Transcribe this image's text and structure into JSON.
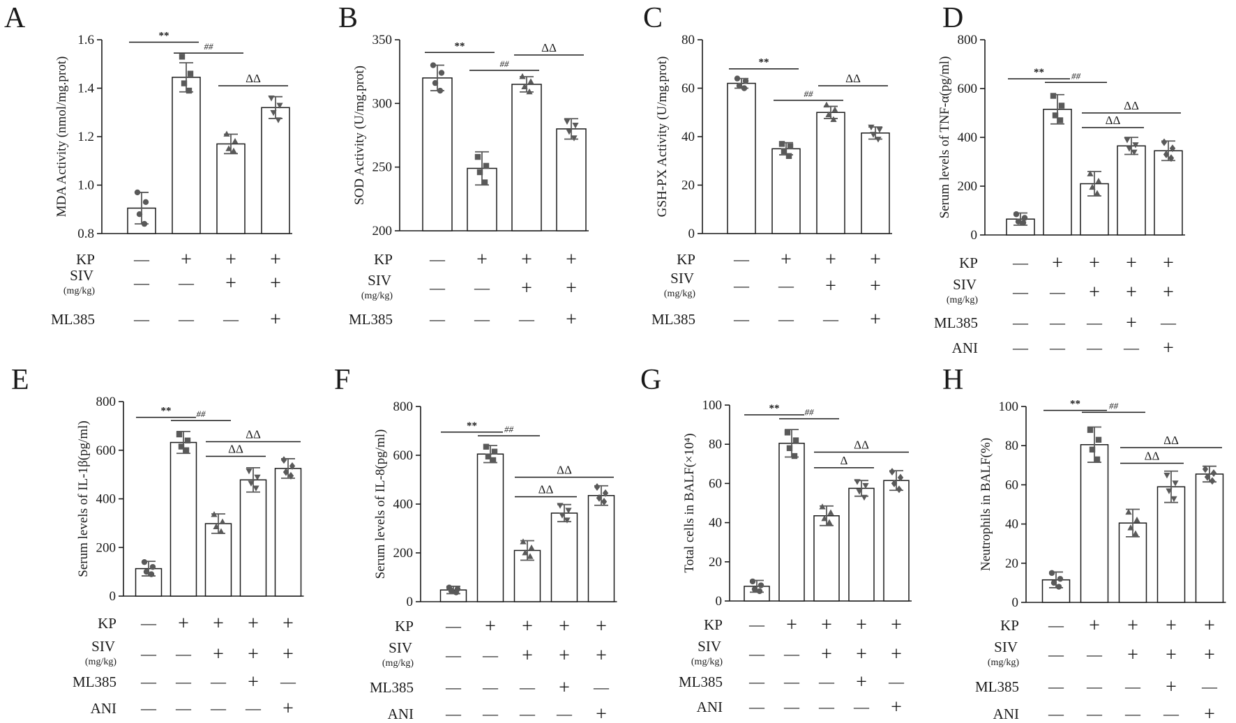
{
  "chart_data": [
    {
      "panel": "A",
      "type": "bar",
      "ylabel": "MDA Activity  (nmol/mg.prot)",
      "ylim": [
        0.8,
        1.6
      ],
      "yticks": [
        0.8,
        1.0,
        1.2,
        1.4,
        1.6
      ],
      "ytick_labels": [
        "0.8",
        "1.0",
        "1.2",
        "1.4",
        "1.6"
      ],
      "values": [
        0.905,
        1.445,
        1.17,
        1.32
      ],
      "errors": [
        0.065,
        0.06,
        0.04,
        0.045
      ],
      "points": [
        [
          0.97,
          0.93,
          0.88,
          0.84
        ],
        [
          1.53,
          1.46,
          1.42,
          1.39
        ],
        [
          1.21,
          1.18,
          1.15,
          1.14
        ],
        [
          1.36,
          1.33,
          1.3,
          1.27
        ]
      ],
      "markers": [
        "circle",
        "square",
        "triangle-up",
        "triangle-down"
      ],
      "sig": [
        {
          "label": "**",
          "from": 0,
          "to": 1,
          "y": 1.59
        },
        {
          "label": "##",
          "from": 1,
          "to": 2,
          "y": 1.545
        },
        {
          "label": "ΔΔ",
          "from": 2,
          "to": 3,
          "y": 1.41
        }
      ],
      "factors": [
        {
          "name": "KP",
          "sub": "",
          "values": [
            "—",
            "+",
            "+",
            "+"
          ]
        },
        {
          "name": "SIV",
          "sub": "(mg/kg)",
          "values": [
            "—",
            "—",
            "+",
            "+"
          ]
        },
        {
          "name": "ML385",
          "sub": "",
          "values": [
            "—",
            "—",
            "—",
            "+"
          ]
        }
      ]
    },
    {
      "panel": "B",
      "type": "bar",
      "ylabel": "SOD Activity (U/mg.prot)",
      "ylim": [
        200,
        350
      ],
      "yticks": [
        200,
        250,
        300,
        350
      ],
      "ytick_labels": [
        "200",
        "250",
        "300",
        "350"
      ],
      "values": [
        320,
        249,
        315,
        280
      ],
      "errors": [
        10,
        13,
        6,
        8
      ],
      "points": [
        [
          330,
          324,
          316,
          310
        ],
        [
          258,
          251,
          246,
          238
        ],
        [
          321,
          317,
          313,
          309
        ],
        [
          286,
          283,
          278,
          273
        ]
      ],
      "markers": [
        "circle",
        "square",
        "triangle-up",
        "triangle-down"
      ],
      "sig": [
        {
          "label": "**",
          "from": 0,
          "to": 1,
          "y": 340
        },
        {
          "label": "##",
          "from": 1,
          "to": 2,
          "y": 326
        },
        {
          "label": "ΔΔ",
          "from": 2,
          "to": 3,
          "y": 338
        }
      ],
      "factors": [
        {
          "name": "KP",
          "sub": "",
          "values": [
            "—",
            "+",
            "+",
            "+"
          ]
        },
        {
          "name": "SIV",
          "sub": "(mg/kg)",
          "values": [
            "—",
            "—",
            "+",
            "+"
          ]
        },
        {
          "name": "ML385",
          "sub": "",
          "values": [
            "—",
            "—",
            "—",
            "+"
          ]
        }
      ]
    },
    {
      "panel": "C",
      "type": "bar",
      "ylabel": "GSH-PX Activity  (U/mg.prot)",
      "ylim": [
        0,
        80
      ],
      "yticks": [
        0,
        20,
        40,
        60,
        80
      ],
      "ytick_labels": [
        "0",
        "20",
        "40",
        "60",
        "80"
      ],
      "values": [
        62,
        35,
        50,
        41.5
      ],
      "errors": [
        2,
        2.5,
        2.5,
        2.5
      ],
      "points": [
        [
          64,
          63,
          61,
          60
        ],
        [
          37,
          36,
          34,
          32
        ],
        [
          53,
          51,
          49,
          47
        ],
        [
          44,
          43,
          41,
          39
        ]
      ],
      "markers": [
        "circle",
        "square",
        "triangle-up",
        "triangle-down"
      ],
      "sig": [
        {
          "label": "**",
          "from": 0,
          "to": 1,
          "y": 68
        },
        {
          "label": "##",
          "from": 1,
          "to": 2,
          "y": 55
        },
        {
          "label": "ΔΔ",
          "from": 2,
          "to": 3,
          "y": 61
        }
      ],
      "factors": [
        {
          "name": "KP",
          "sub": "",
          "values": [
            "—",
            "+",
            "+",
            "+"
          ]
        },
        {
          "name": "SIV",
          "sub": "(mg/kg)",
          "values": [
            "—",
            "—",
            "+",
            "+"
          ]
        },
        {
          "name": "ML385",
          "sub": "",
          "values": [
            "—",
            "—",
            "—",
            "+"
          ]
        }
      ]
    },
    {
      "panel": "D",
      "type": "bar",
      "ylabel": "Serum levels of TNF-α(pg/ml)",
      "ylim": [
        0,
        800
      ],
      "yticks": [
        0,
        200,
        400,
        600,
        800
      ],
      "ytick_labels": [
        "0",
        "200",
        "400",
        "600",
        "800"
      ],
      "values": [
        65,
        515,
        210,
        365,
        345
      ],
      "errors": [
        25,
        60,
        50,
        35,
        40
      ],
      "points": [
        [
          85,
          70,
          55,
          50
        ],
        [
          570,
          530,
          490,
          470
        ],
        [
          250,
          220,
          195,
          170
        ],
        [
          390,
          370,
          355,
          340
        ],
        [
          380,
          355,
          330,
          315
        ]
      ],
      "markers": [
        "circle",
        "square",
        "triangle-up",
        "triangle-down",
        "diamond"
      ],
      "sig": [
        {
          "label": "**",
          "from": 0,
          "to": 1,
          "y": 640
        },
        {
          "label": "##",
          "from": 1,
          "to": 2,
          "y": 625
        },
        {
          "label": "ΔΔ",
          "from": 2,
          "to": 3,
          "y": 440
        },
        {
          "label": "ΔΔ",
          "from": 2,
          "to": 4,
          "y": 500
        }
      ],
      "factors": [
        {
          "name": "KP",
          "sub": "",
          "values": [
            "—",
            "+",
            "+",
            "+",
            "+"
          ]
        },
        {
          "name": "SIV",
          "sub": "(mg/kg)",
          "values": [
            "—",
            "—",
            "+",
            "+",
            "+"
          ]
        },
        {
          "name": "ML385",
          "sub": "",
          "values": [
            "—",
            "—",
            "—",
            "+",
            "—"
          ]
        },
        {
          "name": "ANI",
          "sub": "",
          "values": [
            "—",
            "—",
            "—",
            "—",
            "+"
          ]
        }
      ]
    },
    {
      "panel": "E",
      "type": "bar",
      "ylabel": "Serum levels of IL-1β(pg/ml)",
      "ylim": [
        0,
        800
      ],
      "yticks": [
        0,
        200,
        400,
        600,
        800
      ],
      "ytick_labels": [
        "0",
        "200",
        "400",
        "600",
        "800"
      ],
      "values": [
        113,
        632,
        298,
        478,
        525
      ],
      "errors": [
        30,
        45,
        40,
        50,
        40
      ],
      "points": [
        [
          140,
          120,
          100,
          90
        ],
        [
          665,
          640,
          615,
          600
        ],
        [
          335,
          305,
          285,
          265
        ],
        [
          515,
          490,
          465,
          445
        ],
        [
          560,
          535,
          510,
          495
        ]
      ],
      "markers": [
        "circle",
        "square",
        "triangle-up",
        "triangle-down",
        "diamond"
      ],
      "sig": [
        {
          "label": "**",
          "from": 0,
          "to": 1,
          "y": 735
        },
        {
          "label": "##",
          "from": 1,
          "to": 2,
          "y": 722
        },
        {
          "label": "ΔΔ",
          "from": 2,
          "to": 3,
          "y": 575
        },
        {
          "label": "ΔΔ",
          "from": 2,
          "to": 4,
          "y": 635
        }
      ],
      "factors": [
        {
          "name": "KP",
          "sub": "",
          "values": [
            "—",
            "+",
            "+",
            "+",
            "+"
          ]
        },
        {
          "name": "SIV",
          "sub": "(mg/kg)",
          "values": [
            "—",
            "—",
            "+",
            "+",
            "+"
          ]
        },
        {
          "name": "ML385",
          "sub": "",
          "values": [
            "—",
            "—",
            "—",
            "+",
            "—"
          ]
        },
        {
          "name": "ANI",
          "sub": "",
          "values": [
            "—",
            "—",
            "—",
            "—",
            "+"
          ]
        }
      ]
    },
    {
      "panel": "F",
      "type": "bar",
      "ylabel": "Serum levels of IL-8(pg/ml)",
      "ylim": [
        0,
        800
      ],
      "yticks": [
        0,
        200,
        400,
        600,
        800
      ],
      "ytick_labels": [
        "0",
        "200",
        "400",
        "600",
        "800"
      ],
      "values": [
        48,
        605,
        210,
        363,
        435
      ],
      "errors": [
        15,
        35,
        40,
        35,
        40
      ],
      "points": [
        [
          58,
          52,
          45,
          38
        ],
        [
          635,
          615,
          595,
          580
        ],
        [
          245,
          220,
          200,
          185
        ],
        [
          395,
          375,
          355,
          335
        ],
        [
          470,
          445,
          425,
          410
        ]
      ],
      "markers": [
        "circle",
        "square",
        "triangle-up",
        "triangle-down",
        "diamond"
      ],
      "sig": [
        {
          "label": "**",
          "from": 0,
          "to": 1,
          "y": 695
        },
        {
          "label": "##",
          "from": 1,
          "to": 2,
          "y": 680
        },
        {
          "label": "ΔΔ",
          "from": 2,
          "to": 3,
          "y": 430
        },
        {
          "label": "ΔΔ",
          "from": 2,
          "to": 4,
          "y": 510
        }
      ],
      "factors": [
        {
          "name": "KP",
          "sub": "",
          "values": [
            "—",
            "+",
            "+",
            "+",
            "+"
          ]
        },
        {
          "name": "SIV",
          "sub": "(mg/kg)",
          "values": [
            "—",
            "—",
            "+",
            "+",
            "+"
          ]
        },
        {
          "name": "ML385",
          "sub": "",
          "values": [
            "—",
            "—",
            "—",
            "+",
            "—"
          ]
        },
        {
          "name": "ANI",
          "sub": "",
          "values": [
            "—",
            "—",
            "—",
            "—",
            "+"
          ]
        }
      ]
    },
    {
      "panel": "G",
      "type": "bar",
      "ylabel": "Total cells in BALF(×10⁴)",
      "ylim": [
        0,
        100
      ],
      "yticks": [
        0,
        20,
        40,
        60,
        80,
        100
      ],
      "ytick_labels": [
        "0",
        "20",
        "40",
        "60",
        "80",
        "100"
      ],
      "values": [
        7.5,
        80.5,
        43.5,
        57.5,
        61.5
      ],
      "errors": [
        3,
        7,
        5,
        4,
        5
      ],
      "points": [
        [
          10,
          8,
          6,
          5
        ],
        [
          86,
          82,
          78,
          74
        ],
        [
          48,
          45,
          42,
          40
        ],
        [
          61,
          59,
          56,
          53
        ],
        [
          66,
          63,
          60,
          57
        ]
      ],
      "markers": [
        "circle",
        "square",
        "triangle-up",
        "triangle-down",
        "diamond"
      ],
      "sig": [
        {
          "label": "**",
          "from": 0,
          "to": 1,
          "y": 95
        },
        {
          "label": "##",
          "from": 1,
          "to": 2,
          "y": 93
        },
        {
          "label": "Δ",
          "from": 2,
          "to": 3,
          "y": 68
        },
        {
          "label": "ΔΔ",
          "from": 2,
          "to": 4,
          "y": 76
        }
      ],
      "factors": [
        {
          "name": "KP",
          "sub": "",
          "values": [
            "—",
            "+",
            "+",
            "+",
            "+"
          ]
        },
        {
          "name": "SIV",
          "sub": "(mg/kg)",
          "values": [
            "—",
            "—",
            "+",
            "+",
            "+"
          ]
        },
        {
          "name": "ML385",
          "sub": "",
          "values": [
            "—",
            "—",
            "—",
            "+",
            "—"
          ]
        },
        {
          "name": "ANI",
          "sub": "",
          "values": [
            "—",
            "—",
            "—",
            "—",
            "+"
          ]
        }
      ]
    },
    {
      "panel": "H",
      "type": "bar",
      "ylabel": "Neutrophils in BALF(%)",
      "ylim": [
        0,
        100
      ],
      "yticks": [
        0,
        20,
        40,
        60,
        80,
        100
      ],
      "ytick_labels": [
        "0",
        "20",
        "40",
        "60",
        "80",
        "100"
      ],
      "values": [
        11.5,
        80.5,
        40.5,
        59,
        65.5
      ],
      "errors": [
        4,
        9,
        7,
        8,
        4
      ],
      "points": [
        [
          15,
          12,
          10,
          8
        ],
        [
          88,
          83,
          78,
          73
        ],
        [
          46,
          42,
          38,
          35
        ],
        [
          65,
          61,
          57,
          53
        ],
        [
          68,
          66,
          64,
          62
        ]
      ],
      "markers": [
        "circle",
        "square",
        "triangle-up",
        "triangle-down",
        "diamond"
      ],
      "sig": [
        {
          "label": "**",
          "from": 0,
          "to": 1,
          "y": 98
        },
        {
          "label": "##",
          "from": 1,
          "to": 2,
          "y": 97
        },
        {
          "label": "ΔΔ",
          "from": 2,
          "to": 3,
          "y": 71
        },
        {
          "label": "ΔΔ",
          "from": 2,
          "to": 4,
          "y": 79
        }
      ],
      "factors": [
        {
          "name": "KP",
          "sub": "",
          "values": [
            "—",
            "+",
            "+",
            "+",
            "+"
          ]
        },
        {
          "name": "SIV",
          "sub": "(mg/kg)",
          "values": [
            "—",
            "—",
            "+",
            "+",
            "+"
          ]
        },
        {
          "name": "ML385",
          "sub": "",
          "values": [
            "—",
            "—",
            "—",
            "+",
            "—"
          ]
        },
        {
          "name": "ANI",
          "sub": "",
          "values": [
            "—",
            "—",
            "—",
            "—",
            "+"
          ]
        }
      ]
    }
  ],
  "colors": {
    "axis": "#1a1a1a",
    "bar_fill": "#ffffff",
    "point": "#595959",
    "error": "#595959",
    "sig_line": "#1a1a1a"
  }
}
